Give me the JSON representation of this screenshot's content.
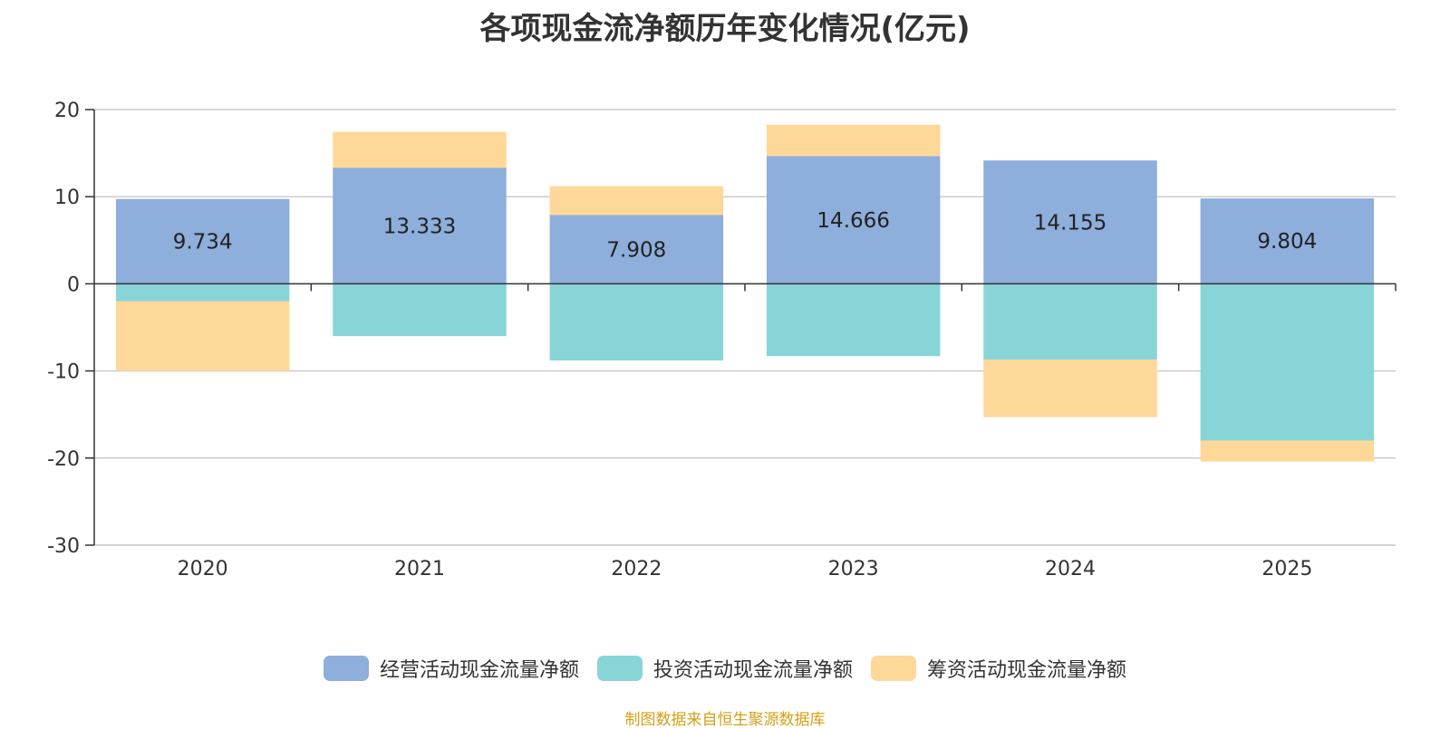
{
  "chart_data": {
    "type": "bar",
    "stacked": true,
    "title": "各项现金流净额历年变化情况(亿元)",
    "categories": [
      "2020",
      "2021",
      "2022",
      "2023",
      "2024",
      "2025"
    ],
    "series": [
      {
        "name": "经营活动现金流量净额",
        "color": "#8eaedb",
        "values": [
          9.734,
          13.333,
          7.908,
          14.666,
          14.155,
          9.804
        ]
      },
      {
        "name": "投资活动现金流量净额",
        "color": "#88d5d7",
        "values": [
          -2.0,
          -6.0,
          -8.8,
          -8.3,
          -8.7,
          -18.0
        ]
      },
      {
        "name": "筹资活动现金流量净额",
        "color": "#fdd898",
        "values": [
          -8.0,
          4.1,
          3.3,
          3.6,
          -6.6,
          -2.4
        ]
      }
    ],
    "data_labels": [
      "9.734",
      "13.333",
      "7.908",
      "14.666",
      "14.155",
      "9.804"
    ],
    "yticks": [
      "20",
      "10",
      "0",
      "-10",
      "-20",
      "-30"
    ],
    "ylim": [
      -30,
      20
    ],
    "grid": true,
    "legend_position": "bottom"
  },
  "source_note": "制图数据来自恒生聚源数据库"
}
